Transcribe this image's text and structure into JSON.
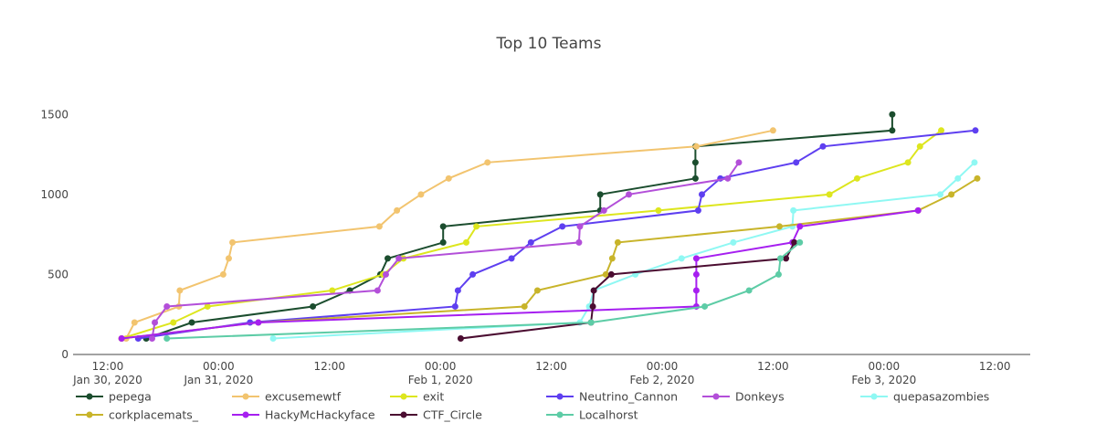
{
  "chart_data": {
    "type": "line",
    "title": "Top 10 Teams",
    "xlabel": "",
    "ylabel": "",
    "xlim": [
      "2020-01-30 08:15",
      "2020-02-03 15:50"
    ],
    "ylim": [
      0,
      1650
    ],
    "grid": false,
    "legend_placement": "bottom",
    "y_ticks": [
      0,
      500,
      1000,
      1500
    ],
    "y_tick_labels": [
      "0",
      "500",
      "1000",
      "1500"
    ],
    "x_ticks": [
      {
        "t": "2020-01-30 12:00",
        "line1": "12:00",
        "line2": "Jan 30, 2020"
      },
      {
        "t": "2020-01-31 00:00",
        "line1": "00:00",
        "line2": "Jan 31, 2020"
      },
      {
        "t": "2020-01-31 12:00",
        "line1": "12:00",
        "line2": ""
      },
      {
        "t": "2020-02-01 00:00",
        "line1": "00:00",
        "line2": "Feb 1, 2020"
      },
      {
        "t": "2020-02-01 12:00",
        "line1": "12:00",
        "line2": ""
      },
      {
        "t": "2020-02-02 00:00",
        "line1": "00:00",
        "line2": "Feb 2, 2020"
      },
      {
        "t": "2020-02-02 12:00",
        "line1": "12:00",
        "line2": ""
      },
      {
        "t": "2020-02-03 00:00",
        "line1": "00:00",
        "line2": "Feb 3, 2020"
      },
      {
        "t": "2020-02-03 12:00",
        "line1": "12:00",
        "line2": ""
      }
    ],
    "series": [
      {
        "name": "pepega",
        "color": "#1b4d2e",
        "x": [
          "2020-01-30 16:10",
          "2020-01-30 21:06",
          "2020-01-31 10:12",
          "2020-01-31 14:12",
          "2020-01-31 17:30",
          "2020-01-31 18:18",
          "2020-02-01 00:18",
          "2020-02-01 00:18",
          "2020-02-01 17:18",
          "2020-02-01 17:18",
          "2020-02-02 03:36",
          "2020-02-02 03:36",
          "2020-02-02 03:36",
          "2020-02-03 00:54",
          "2020-02-03 00:54"
        ],
        "y": [
          100,
          200,
          300,
          400,
          500,
          600,
          700,
          800,
          900,
          1000,
          1100,
          1200,
          1300,
          1400,
          1500
        ]
      },
      {
        "name": "excusemewtf",
        "color": "#f2c46f",
        "x": [
          "2020-01-30 14:00",
          "2020-01-30 14:54",
          "2020-01-30 19:42",
          "2020-01-30 19:48",
          "2020-01-31 00:30",
          "2020-01-31 01:06",
          "2020-01-31 01:30",
          "2020-01-31 17:24",
          "2020-01-31 19:18",
          "2020-01-31 21:54",
          "2020-02-01 00:54",
          "2020-02-01 05:06",
          "2020-02-02 03:42",
          "2020-02-02 12:00"
        ],
        "y": [
          100,
          200,
          300,
          400,
          500,
          600,
          700,
          800,
          900,
          1000,
          1100,
          1200,
          1300,
          1400
        ]
      },
      {
        "name": "exit",
        "color": "#dde61e",
        "x": [
          "2020-01-30 13:30",
          "2020-01-30 19:06",
          "2020-01-30 22:48",
          "2020-01-31 12:18",
          "2020-01-31 17:48",
          "2020-01-31 20:00",
          "2020-02-01 02:48",
          "2020-02-01 03:54",
          "2020-02-01 23:36",
          "2020-02-02 18:06",
          "2020-02-02 21:06",
          "2020-02-03 02:36",
          "2020-02-03 03:54",
          "2020-02-03 06:12"
        ],
        "y": [
          100,
          200,
          300,
          400,
          500,
          600,
          700,
          800,
          900,
          1000,
          1100,
          1200,
          1300,
          1400
        ]
      },
      {
        "name": "Neutrino_Cannon",
        "color": "#5e3ff0",
        "x": [
          "2020-01-30 15:18",
          "2020-01-31 03:24",
          "2020-02-01 01:36",
          "2020-02-01 01:54",
          "2020-02-01 03:30",
          "2020-02-01 07:42",
          "2020-02-01 09:48",
          "2020-02-01 13:12",
          "2020-02-02 03:54",
          "2020-02-02 04:18",
          "2020-02-02 06:18",
          "2020-02-02 14:30",
          "2020-02-02 17:24",
          "2020-02-03 09:54"
        ],
        "y": [
          100,
          200,
          300,
          400,
          500,
          600,
          700,
          800,
          900,
          1000,
          1100,
          1200,
          1300,
          1400
        ]
      },
      {
        "name": "Donkeys",
        "color": "#b34fd9",
        "x": [
          "2020-01-30 16:48",
          "2020-01-30 17:06",
          "2020-01-30 18:24",
          "2020-01-31 17:12",
          "2020-01-31 18:06",
          "2020-01-31 19:30",
          "2020-02-01 15:00",
          "2020-02-01 15:06",
          "2020-02-01 17:42",
          "2020-02-01 20:24",
          "2020-02-02 07:06",
          "2020-02-02 08:18"
        ],
        "y": [
          100,
          200,
          300,
          400,
          500,
          600,
          700,
          800,
          900,
          1000,
          1100,
          1200
        ]
      },
      {
        "name": "quepasazombies",
        "color": "#8ff8f3",
        "x": [
          "2020-01-31 05:54",
          "2020-02-01 15:06",
          "2020-02-01 16:06",
          "2020-02-01 16:36",
          "2020-02-01 21:06",
          "2020-02-02 02:06",
          "2020-02-02 07:42",
          "2020-02-02 14:06",
          "2020-02-02 14:12",
          "2020-02-03 06:06",
          "2020-02-03 08:00",
          "2020-02-03 09:48"
        ],
        "y": [
          100,
          200,
          300,
          400,
          500,
          600,
          700,
          800,
          900,
          1000,
          1100,
          1200
        ]
      },
      {
        "name": "corkplacemats_",
        "color": "#c8b42a",
        "x": [
          "2020-01-30 13:30",
          "2020-01-31 04:18",
          "2020-02-01 09:06",
          "2020-02-01 10:30",
          "2020-02-01 17:54",
          "2020-02-01 18:36",
          "2020-02-01 19:12",
          "2020-02-02 12:42",
          "2020-02-03 03:42",
          "2020-02-03 07:18",
          "2020-02-03 10:06"
        ],
        "y": [
          100,
          200,
          300,
          400,
          500,
          600,
          700,
          800,
          900,
          1000,
          1100
        ]
      },
      {
        "name": "HackyMcHackyface",
        "color": "#a61ff0",
        "x": [
          "2020-01-30 13:30",
          "2020-01-31 04:18",
          "2020-02-02 03:42",
          "2020-02-02 03:42",
          "2020-02-02 03:42",
          "2020-02-02 03:42",
          "2020-02-02 14:06",
          "2020-02-02 14:54",
          "2020-02-03 03:42"
        ],
        "y": [
          100,
          200,
          300,
          400,
          500,
          600,
          700,
          800,
          900
        ]
      },
      {
        "name": "CTF_Circle",
        "color": "#4b0d31",
        "x": [
          "2020-02-01 02:12",
          "2020-02-01 16:18",
          "2020-02-01 16:30",
          "2020-02-01 16:36",
          "2020-02-01 18:30",
          "2020-02-02 13:24",
          "2020-02-02 14:18"
        ],
        "y": [
          100,
          200,
          300,
          400,
          500,
          600,
          700
        ]
      },
      {
        "name": "Localhorst",
        "color": "#5dcca6",
        "x": [
          "2020-01-30 18:24",
          "2020-02-01 16:18",
          "2020-02-02 04:36",
          "2020-02-02 09:24",
          "2020-02-02 12:36",
          "2020-02-02 12:48",
          "2020-02-02 14:54"
        ],
        "y": [
          100,
          200,
          300,
          400,
          500,
          600,
          700
        ]
      }
    ]
  }
}
